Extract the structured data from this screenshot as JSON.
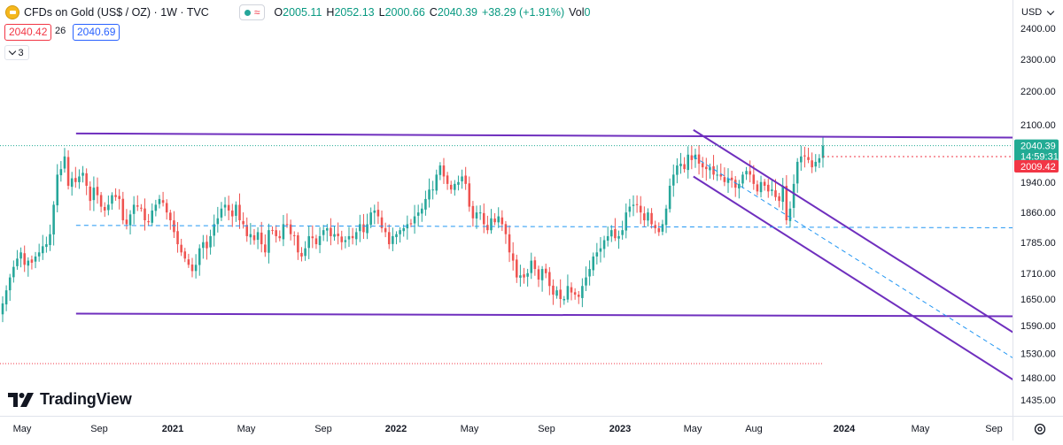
{
  "legend": {
    "title": "CFDs on Gold (US$ / OZ) · 1W · TVC",
    "open_key": "O",
    "open": "2005.11",
    "high_key": "H",
    "high": "2052.13",
    "low_key": "L",
    "low": "2000.66",
    "close_key": "C",
    "close": "2040.39",
    "change": "+38.29 (+1.91%)",
    "vol_key": "Vol",
    "vol": "0"
  },
  "quote": {
    "sell": "2040.42",
    "spread": "26",
    "buy": "2040.69"
  },
  "collapse_count": "3",
  "currency": "USD",
  "brand": "TradingView",
  "colors": {
    "up": "#26a69a",
    "down": "#ef5350",
    "trendline": "#6f2fbe",
    "dashed": "#2196f3",
    "last_price_bg": "#22ab94",
    "prev_close_bg": "#f23645"
  },
  "price_axis": {
    "ticks": [
      "2400.00",
      "2300.00",
      "2200.00",
      "2100.00",
      "1940.00",
      "1860.00",
      "1785.00",
      "1710.00",
      "1650.00",
      "1590.00",
      "1530.00",
      "1480.00",
      "1435.00"
    ],
    "scale": "log"
  },
  "time_axis": {
    "labels": [
      "May",
      "Sep",
      "2021",
      "May",
      "Sep",
      "2022",
      "May",
      "Sep",
      "2023",
      "May",
      "Aug",
      "2024",
      "May",
      "Sep"
    ]
  },
  "price_labels": {
    "last_price": "2040.39",
    "countdown": "14:59:31",
    "prev_close": "2009.42"
  },
  "chart_data": {
    "type": "candlestick",
    "title": "CFDs on Gold (US$ / OZ) · 1W · TVC",
    "y_scale": "log",
    "ylim": [
      1420,
      2450
    ],
    "grid": false,
    "x_start": "2020-04-06",
    "x_end": "2023-11-27",
    "close_series": [
      1640,
      1670,
      1700,
      1725,
      1745,
      1760,
      1730,
      1740,
      1735,
      1750,
      1760,
      1775,
      1780,
      1805,
      1880,
      1960,
      1975,
      2010,
      1930,
      1950,
      1940,
      1955,
      1965,
      1930,
      1890,
      1925,
      1905,
      1875,
      1865,
      1880,
      1905,
      1900,
      1895,
      1840,
      1830,
      1855,
      1880,
      1875,
      1870,
      1840,
      1835,
      1865,
      1880,
      1895,
      1885,
      1860,
      1840,
      1810,
      1780,
      1760,
      1745,
      1730,
      1715,
      1730,
      1770,
      1785,
      1770,
      1800,
      1830,
      1845,
      1870,
      1880,
      1865,
      1850,
      1880,
      1840,
      1830,
      1800,
      1805,
      1790,
      1810,
      1780,
      1760,
      1815,
      1815,
      1800,
      1795,
      1830,
      1830,
      1805,
      1800,
      1760,
      1750,
      1770,
      1800,
      1795,
      1780,
      1800,
      1815,
      1820,
      1800,
      1805,
      1800,
      1785,
      1790,
      1800,
      1795,
      1810,
      1830,
      1810,
      1830,
      1860,
      1865,
      1850,
      1820,
      1810,
      1780,
      1800,
      1805,
      1815,
      1820,
      1830,
      1830,
      1850,
      1860,
      1870,
      1895,
      1920,
      1920,
      1960,
      1985,
      1955,
      1935,
      1920,
      1935,
      1940,
      1955,
      1935,
      1875,
      1845,
      1860,
      1860,
      1830,
      1815,
      1845,
      1835,
      1850,
      1830,
      1805,
      1760,
      1740,
      1700,
      1705,
      1700,
      1710,
      1740,
      1720,
      1695,
      1720,
      1710,
      1680,
      1660,
      1670,
      1650,
      1650,
      1680,
      1665,
      1660,
      1655,
      1680,
      1700,
      1720,
      1750,
      1760,
      1770,
      1790,
      1800,
      1815,
      1795,
      1800,
      1815,
      1860,
      1875,
      1880,
      1880,
      1860,
      1840,
      1860,
      1830,
      1820,
      1810,
      1830,
      1870,
      1930,
      1960,
      1985,
      1990,
      1975,
      2015,
      2000,
      2015,
      1990,
      1980,
      1975,
      1980,
      1960,
      1960,
      1955,
      1940,
      1950,
      1945,
      1925,
      1935,
      1960,
      1970,
      1960,
      1935,
      1915,
      1940,
      1930,
      1915,
      1920,
      1900,
      1890,
      1930,
      1840,
      1870,
      1935,
      1995,
      2010,
      2010,
      2000,
      1980,
      1995,
      2005,
      2040
    ],
    "close_series_note_removed": true,
    "trendlines": [
      {
        "from": [
          "2020-08-03",
          2075
        ],
        "to": [
          "2024-10-01",
          2063
        ],
        "style": "solid"
      },
      {
        "from": [
          "2020-08-03",
          1617
        ],
        "to": [
          "2024-10-01",
          1611
        ],
        "style": "solid"
      },
      {
        "from": [
          "2023-05-01",
          2085
        ],
        "to": [
          "2024-10-01",
          1575
        ],
        "style": "solid"
      },
      {
        "from": [
          "2023-05-01",
          1955
        ],
        "to": [
          "2024-10-01",
          1475
        ],
        "style": "solid"
      },
      {
        "from": [
          "2023-05-01",
          2010
        ],
        "to": [
          "2024-10-01",
          1520
        ],
        "style": "dashed"
      },
      {
        "from": [
          "2020-08-03",
          1827
        ],
        "to": [
          "2024-10-01",
          1821
        ],
        "style": "dashed"
      }
    ]
  }
}
